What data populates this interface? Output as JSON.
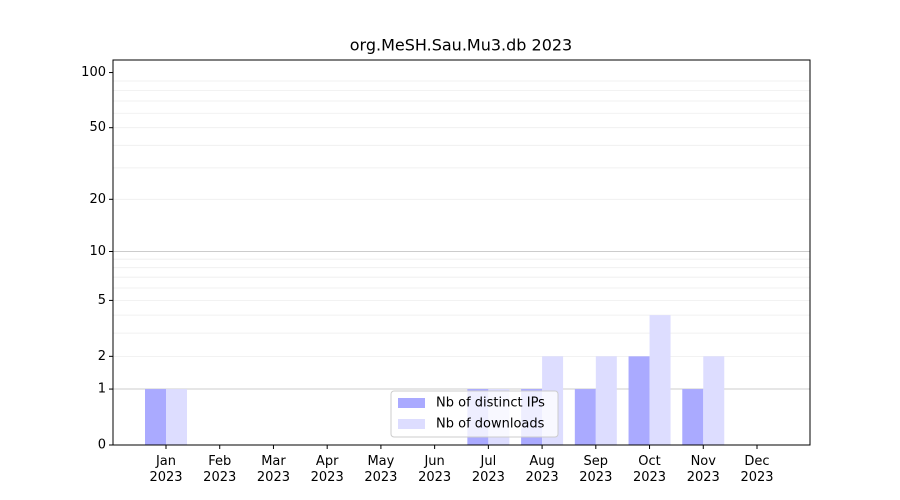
{
  "chart_data": {
    "type": "bar",
    "title": "org.MeSH.Sau.Mu3.db 2023",
    "categories": [
      "Jan 2023",
      "Feb 2023",
      "Mar 2023",
      "Apr 2023",
      "May 2023",
      "Jun 2023",
      "Jul 2023",
      "Aug 2023",
      "Sep 2023",
      "Oct 2023",
      "Nov 2023",
      "Dec 2023"
    ],
    "series": [
      {
        "name": "Nb of distinct IPs",
        "color": "#aaaaff",
        "values": [
          1,
          0,
          0,
          0,
          0,
          0,
          1,
          1,
          1,
          2,
          1,
          0
        ]
      },
      {
        "name": "Nb of downloads",
        "color": "#ddddff",
        "values": [
          1,
          0,
          0,
          0,
          0,
          0,
          1,
          2,
          2,
          4,
          2,
          0
        ]
      }
    ],
    "yscale": "log1p",
    "ylim": [
      0,
      117
    ],
    "yticks": [
      0,
      1,
      2,
      5,
      10,
      20,
      50,
      100
    ],
    "ymajorgrid": [
      1,
      10
    ],
    "yminorticks": [
      2,
      3,
      4,
      5,
      6,
      7,
      8,
      9,
      20,
      30,
      40,
      50,
      60,
      70,
      80,
      90
    ],
    "legend": "lower center"
  }
}
